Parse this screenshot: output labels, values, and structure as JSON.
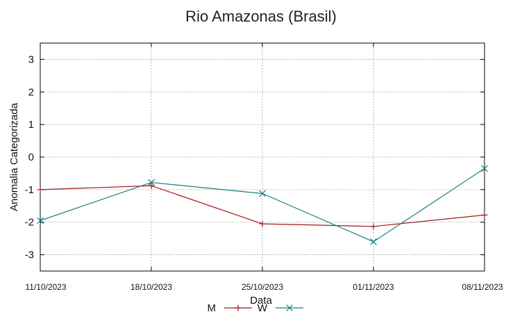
{
  "chart_data": {
    "type": "line",
    "title": "Rio Amazonas (Brasil)",
    "xlabel": "Data",
    "ylabel": "Anomalia Categorizada",
    "categories": [
      "11/10/2023",
      "18/10/2023",
      "25/10/2023",
      "01/11/2023",
      "08/11/2023"
    ],
    "ylim": [
      -3.5,
      3.5
    ],
    "yticks": [
      3,
      2,
      1,
      0,
      -1,
      -2,
      -3
    ],
    "grid": true,
    "legend_position": "bottom-center",
    "series": [
      {
        "name": "M",
        "color": "#a01818",
        "marker": "plus",
        "values": [
          -1.0,
          -0.88,
          -2.05,
          -2.13,
          -1.78
        ]
      },
      {
        "name": "W",
        "color": "#1a7e80",
        "marker": "cross",
        "values": [
          -1.95,
          -0.78,
          -1.12,
          -2.6,
          -0.35
        ]
      }
    ]
  }
}
